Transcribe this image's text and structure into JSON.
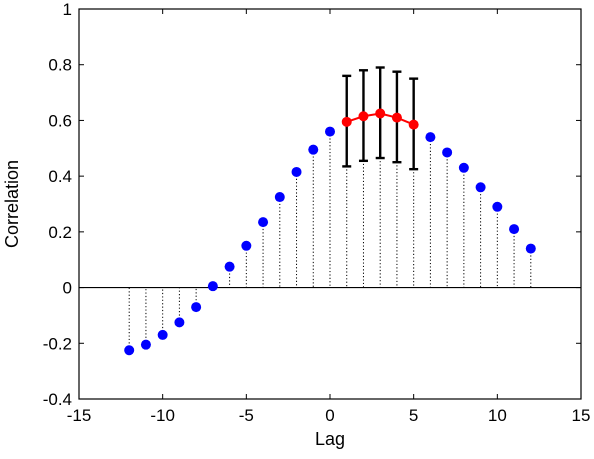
{
  "chart_data": {
    "type": "scatter",
    "title": "",
    "xlabel": "Lag",
    "ylabel": "Correlation",
    "xlim": [
      -15,
      15
    ],
    "ylim": [
      -0.4,
      1
    ],
    "xticks": [
      -15,
      -10,
      -5,
      0,
      5,
      10,
      15
    ],
    "yticks": [
      -0.4,
      -0.2,
      0,
      0.2,
      0.4,
      0.6,
      0.8,
      1
    ],
    "xtick_labels": [
      "-15",
      "-10",
      "-5",
      "0",
      "5",
      "10",
      "15"
    ],
    "ytick_labels": [
      "-0.4",
      "-0.2",
      "0",
      "0.2",
      "0.4",
      "0.6",
      "0.8",
      "1"
    ],
    "grid": false,
    "stem_style": "dotted vertical lines from each point to y=0",
    "zero_line": true,
    "series": [
      {
        "color": "#0000ff",
        "points": [
          {
            "x": -12,
            "y": -0.225
          },
          {
            "x": -11,
            "y": -0.205
          },
          {
            "x": -10,
            "y": -0.17
          },
          {
            "x": -9,
            "y": -0.125
          },
          {
            "x": -8,
            "y": -0.07
          },
          {
            "x": -7,
            "y": 0.005
          },
          {
            "x": -6,
            "y": 0.075
          },
          {
            "x": -5,
            "y": 0.15
          },
          {
            "x": -4,
            "y": 0.235
          },
          {
            "x": -3,
            "y": 0.325
          },
          {
            "x": -2,
            "y": 0.415
          },
          {
            "x": -1,
            "y": 0.495
          },
          {
            "x": 0,
            "y": 0.56
          },
          {
            "x": 6,
            "y": 0.54
          },
          {
            "x": 7,
            "y": 0.485
          },
          {
            "x": 8,
            "y": 0.43
          },
          {
            "x": 9,
            "y": 0.36
          },
          {
            "x": 10,
            "y": 0.29
          },
          {
            "x": 11,
            "y": 0.21
          },
          {
            "x": 12,
            "y": 0.14
          }
        ]
      },
      {
        "color": "#ff0000",
        "connected": true,
        "points": [
          {
            "x": 1,
            "y": 0.595,
            "err_low": 0.435,
            "err_high": 0.76
          },
          {
            "x": 2,
            "y": 0.615,
            "err_low": 0.455,
            "err_high": 0.78
          },
          {
            "x": 3,
            "y": 0.625,
            "err_low": 0.465,
            "err_high": 0.79
          },
          {
            "x": 4,
            "y": 0.61,
            "err_low": 0.45,
            "err_high": 0.775
          },
          {
            "x": 5,
            "y": 0.585,
            "err_low": 0.425,
            "err_high": 0.75
          }
        ]
      }
    ]
  }
}
